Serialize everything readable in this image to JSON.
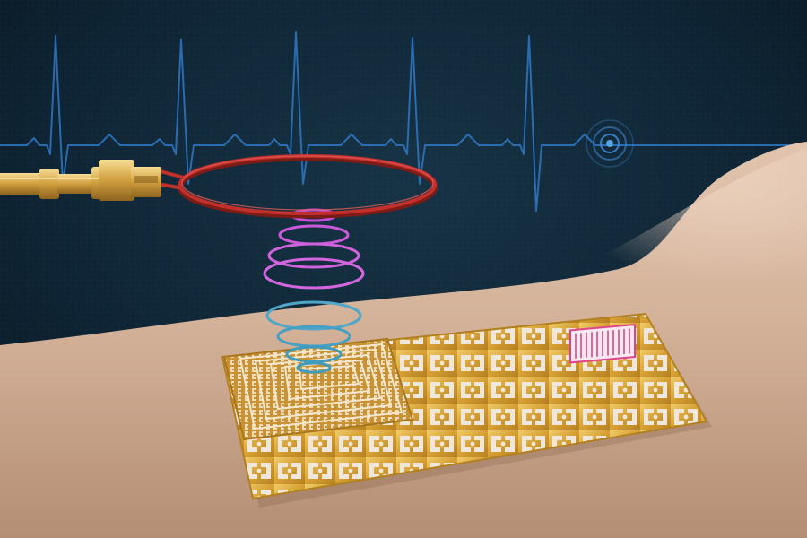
{
  "scene": {
    "subject": "wireless-skin-sensor-patch",
    "background_color": "#0e2331",
    "ecg_trace_color": "#2f78c4",
    "skin_color": "#d3b29a",
    "patch_color": "#d9a43a",
    "antenna_coil_color": "#c2302c",
    "connector_color": "#d4a94e",
    "wave_colors": [
      "#c64fd6",
      "#d466e0",
      "#4fa6c9",
      "#3f9cbf"
    ],
    "heater_grid_color": "#e0438a"
  },
  "icons": {
    "pulse_target": "target-rings-icon"
  }
}
